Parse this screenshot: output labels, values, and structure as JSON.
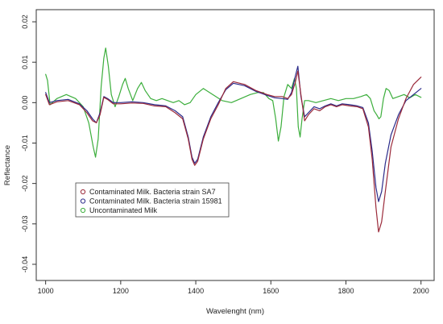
{
  "chart_data": {
    "type": "line",
    "title": "",
    "xlabel": "Wavelenght (nm)",
    "ylabel": "Reflectance",
    "xlim": [
      975,
      2035
    ],
    "ylim": [
      -0.044,
      0.023
    ],
    "xticks": [
      1000,
      1200,
      1400,
      1600,
      1800,
      2000
    ],
    "yticks": [
      -0.04,
      -0.03,
      -0.02,
      -0.01,
      0.0,
      0.01,
      0.02
    ],
    "xtick_labels": [
      "1000",
      "1200",
      "1400",
      "1600",
      "1800",
      "2000"
    ],
    "ytick_labels": [
      "-0.04",
      "-0.03",
      "-0.02",
      "-0.01",
      "0.00",
      "0.01",
      "0.02"
    ],
    "grid": false,
    "legend_position": "center-left",
    "series": [
      {
        "name": "Contaminated Milk. Bacteria strain SA7",
        "color": "#9b2a3a",
        "points": [
          [
            1000,
            0.002
          ],
          [
            1010,
            -0.0005
          ],
          [
            1030,
            0.0002
          ],
          [
            1060,
            0.0005
          ],
          [
            1090,
            -0.0005
          ],
          [
            1110,
            -0.0025
          ],
          [
            1125,
            -0.0045
          ],
          [
            1135,
            -0.005
          ],
          [
            1145,
            -0.003
          ],
          [
            1155,
            0.0013
          ],
          [
            1165,
            0.0008
          ],
          [
            1180,
            -0.0003
          ],
          [
            1200,
            -0.0003
          ],
          [
            1230,
            -0.0001
          ],
          [
            1260,
            -0.0002
          ],
          [
            1290,
            -0.0008
          ],
          [
            1320,
            -0.001
          ],
          [
            1345,
            -0.0025
          ],
          [
            1365,
            -0.004
          ],
          [
            1380,
            -0.009
          ],
          [
            1390,
            -0.014
          ],
          [
            1397,
            -0.0155
          ],
          [
            1405,
            -0.0145
          ],
          [
            1420,
            -0.009
          ],
          [
            1440,
            -0.004
          ],
          [
            1460,
            -0.0005
          ],
          [
            1480,
            0.0035
          ],
          [
            1500,
            0.0052
          ],
          [
            1530,
            0.0045
          ],
          [
            1560,
            0.003
          ],
          [
            1590,
            0.002
          ],
          [
            1610,
            0.0015
          ],
          [
            1630,
            0.0015
          ],
          [
            1645,
            0.001
          ],
          [
            1655,
            0.002
          ],
          [
            1665,
            0.005
          ],
          [
            1672,
            0.0078
          ],
          [
            1680,
            0.002
          ],
          [
            1690,
            -0.0045
          ],
          [
            1700,
            -0.003
          ],
          [
            1715,
            -0.0015
          ],
          [
            1730,
            -0.002
          ],
          [
            1745,
            -0.001
          ],
          [
            1760,
            -0.0005
          ],
          [
            1775,
            -0.001
          ],
          [
            1790,
            -0.0005
          ],
          [
            1810,
            -0.0008
          ],
          [
            1830,
            -0.001
          ],
          [
            1845,
            -0.0015
          ],
          [
            1860,
            -0.006
          ],
          [
            1870,
            -0.014
          ],
          [
            1880,
            -0.026
          ],
          [
            1887,
            -0.032
          ],
          [
            1895,
            -0.0295
          ],
          [
            1905,
            -0.022
          ],
          [
            1920,
            -0.011
          ],
          [
            1940,
            -0.004
          ],
          [
            1960,
            0.001
          ],
          [
            1980,
            0.0045
          ],
          [
            2000,
            0.0063
          ]
        ]
      },
      {
        "name": "Contaminated Milk. Bacteria strain 15981",
        "color": "#2b2b8a",
        "points": [
          [
            1000,
            0.0025
          ],
          [
            1010,
            0.0
          ],
          [
            1030,
            0.0005
          ],
          [
            1060,
            0.0008
          ],
          [
            1090,
            -0.0003
          ],
          [
            1110,
            -0.002
          ],
          [
            1125,
            -0.004
          ],
          [
            1135,
            -0.005
          ],
          [
            1145,
            -0.0025
          ],
          [
            1155,
            0.0015
          ],
          [
            1165,
            0.001
          ],
          [
            1180,
            0.0
          ],
          [
            1200,
            0.0
          ],
          [
            1230,
            0.0002
          ],
          [
            1260,
            0.0
          ],
          [
            1290,
            -0.0005
          ],
          [
            1320,
            -0.0008
          ],
          [
            1345,
            -0.002
          ],
          [
            1365,
            -0.0035
          ],
          [
            1380,
            -0.0085
          ],
          [
            1390,
            -0.0135
          ],
          [
            1397,
            -0.015
          ],
          [
            1405,
            -0.014
          ],
          [
            1420,
            -0.0085
          ],
          [
            1440,
            -0.0035
          ],
          [
            1460,
            0.0
          ],
          [
            1480,
            0.0032
          ],
          [
            1500,
            0.0048
          ],
          [
            1530,
            0.0042
          ],
          [
            1560,
            0.0028
          ],
          [
            1590,
            0.0018
          ],
          [
            1610,
            0.0012
          ],
          [
            1630,
            0.001
          ],
          [
            1645,
            0.0008
          ],
          [
            1655,
            0.0025
          ],
          [
            1665,
            0.0065
          ],
          [
            1672,
            0.009
          ],
          [
            1680,
            0.0015
          ],
          [
            1690,
            -0.0035
          ],
          [
            1700,
            -0.0025
          ],
          [
            1715,
            -0.001
          ],
          [
            1730,
            -0.0015
          ],
          [
            1745,
            -0.0008
          ],
          [
            1760,
            -0.0003
          ],
          [
            1775,
            -0.0008
          ],
          [
            1790,
            -0.0003
          ],
          [
            1810,
            -0.0005
          ],
          [
            1830,
            -0.0008
          ],
          [
            1845,
            -0.0012
          ],
          [
            1860,
            -0.005
          ],
          [
            1870,
            -0.012
          ],
          [
            1880,
            -0.021
          ],
          [
            1887,
            -0.0245
          ],
          [
            1895,
            -0.022
          ],
          [
            1905,
            -0.015
          ],
          [
            1920,
            -0.008
          ],
          [
            1940,
            -0.003
          ],
          [
            1960,
            0.0005
          ],
          [
            1980,
            0.002
          ],
          [
            2000,
            0.0035
          ]
        ]
      },
      {
        "name": "Uncontaminated Milk",
        "color": "#3cae3c",
        "points": [
          [
            1000,
            0.007
          ],
          [
            1005,
            0.0055
          ],
          [
            1012,
            -0.0005
          ],
          [
            1030,
            0.001
          ],
          [
            1055,
            0.002
          ],
          [
            1080,
            0.001
          ],
          [
            1100,
            -0.001
          ],
          [
            1115,
            -0.005
          ],
          [
            1127,
            -0.011
          ],
          [
            1133,
            -0.0135
          ],
          [
            1140,
            -0.009
          ],
          [
            1148,
            0.004
          ],
          [
            1155,
            0.011
          ],
          [
            1160,
            0.0135
          ],
          [
            1167,
            0.009
          ],
          [
            1175,
            0.002
          ],
          [
            1185,
            -0.001
          ],
          [
            1195,
            0.0015
          ],
          [
            1205,
            0.0045
          ],
          [
            1212,
            0.006
          ],
          [
            1220,
            0.0035
          ],
          [
            1232,
            0.0005
          ],
          [
            1245,
            0.0035
          ],
          [
            1255,
            0.005
          ],
          [
            1265,
            0.003
          ],
          [
            1280,
            0.001
          ],
          [
            1295,
            0.0005
          ],
          [
            1310,
            0.001
          ],
          [
            1325,
            0.0005
          ],
          [
            1340,
            0.0
          ],
          [
            1355,
            0.0005
          ],
          [
            1370,
            -0.0005
          ],
          [
            1385,
            0.0
          ],
          [
            1400,
            0.002
          ],
          [
            1420,
            0.0035
          ],
          [
            1445,
            0.002
          ],
          [
            1470,
            0.0005
          ],
          [
            1495,
            0.0
          ],
          [
            1520,
            0.001
          ],
          [
            1545,
            0.002
          ],
          [
            1565,
            0.0025
          ],
          [
            1580,
            0.0025
          ],
          [
            1595,
            0.001
          ],
          [
            1605,
            0.0005
          ],
          [
            1613,
            -0.004
          ],
          [
            1620,
            -0.0095
          ],
          [
            1627,
            -0.006
          ],
          [
            1635,
            0.0015
          ],
          [
            1645,
            0.0045
          ],
          [
            1655,
            0.0035
          ],
          [
            1663,
            0.006
          ],
          [
            1668,
            0.0035
          ],
          [
            1673,
            -0.006
          ],
          [
            1678,
            -0.0085
          ],
          [
            1683,
            -0.004
          ],
          [
            1690,
            0.0005
          ],
          [
            1700,
            0.0005
          ],
          [
            1720,
            0.0
          ],
          [
            1740,
            0.0005
          ],
          [
            1760,
            0.001
          ],
          [
            1780,
            0.0005
          ],
          [
            1800,
            0.001
          ],
          [
            1820,
            0.001
          ],
          [
            1840,
            0.0015
          ],
          [
            1855,
            0.002
          ],
          [
            1865,
            0.001
          ],
          [
            1875,
            -0.002
          ],
          [
            1882,
            -0.003
          ],
          [
            1888,
            -0.004
          ],
          [
            1893,
            -0.0035
          ],
          [
            1900,
            0.001
          ],
          [
            1907,
            0.0035
          ],
          [
            1915,
            0.003
          ],
          [
            1925,
            0.001
          ],
          [
            1940,
            0.0015
          ],
          [
            1955,
            0.002
          ],
          [
            1970,
            0.0012
          ],
          [
            1985,
            0.002
          ],
          [
            2000,
            0.0013
          ]
        ]
      }
    ]
  }
}
